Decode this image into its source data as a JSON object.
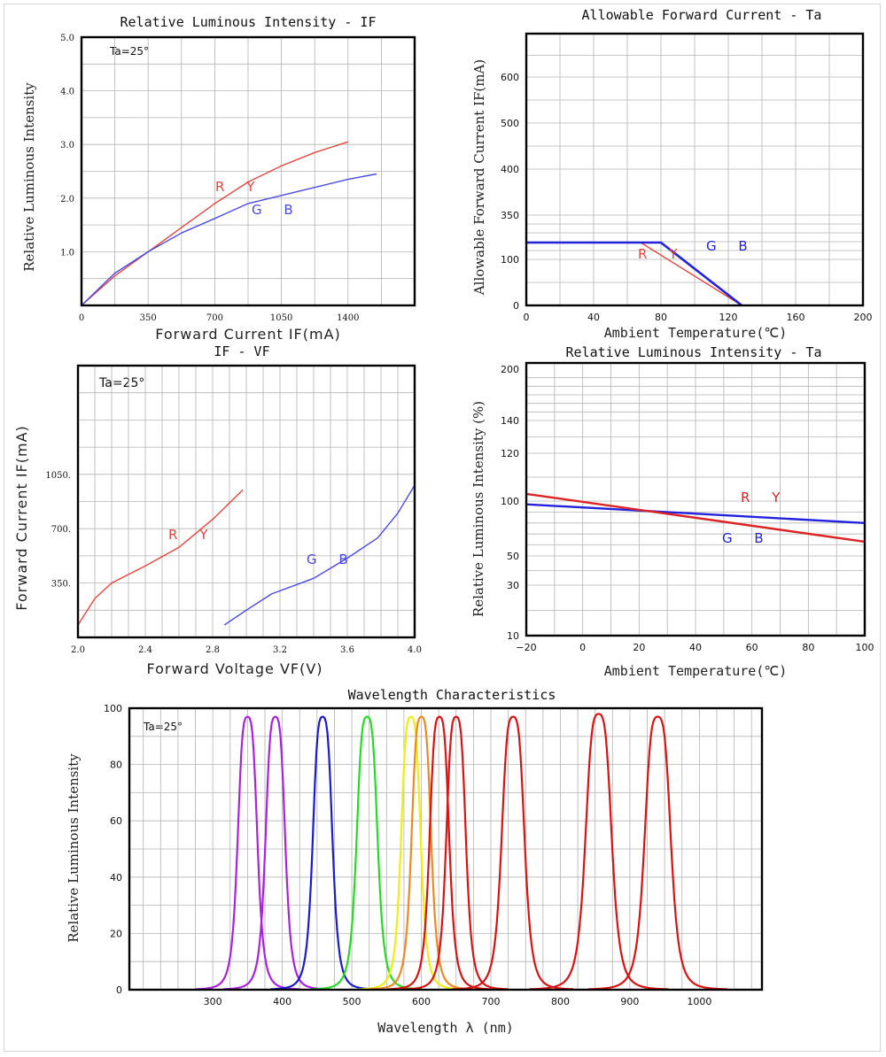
{
  "chart_data": [
    {
      "id": "lum-if",
      "type": "line",
      "title": "Relative Luminous Intensity - IF",
      "xlabel": "Forward Current IF(mA)",
      "ylabel": "Relative Luminous Intensity",
      "annotation": "Ta=25°",
      "xlim": [
        0,
        1750
      ],
      "ylim": [
        0,
        5.0
      ],
      "xticks": [
        0,
        350,
        700,
        1050,
        1400
      ],
      "xtick_labels": [
        "0",
        "350",
        "700",
        "1050",
        "1400"
      ],
      "yticks": [
        1.0,
        2.0,
        3.0,
        4.0,
        5.0
      ],
      "ytick_labels": [
        "1.0",
        "2.0",
        "3.0",
        "4.0",
        "5.0"
      ],
      "grid": true,
      "series": [
        {
          "name": "R Y",
          "color": "#e8453c",
          "x": [
            0,
            175,
            350,
            525,
            700,
            875,
            1050,
            1225,
            1400
          ],
          "y": [
            0,
            0.55,
            1.0,
            1.45,
            1.9,
            2.3,
            2.6,
            2.85,
            3.05
          ]
        },
        {
          "name": "G B",
          "color": "#4a4ae8",
          "x": [
            0,
            175,
            350,
            525,
            700,
            875,
            1050,
            1225,
            1400,
            1550
          ],
          "y": [
            0,
            0.6,
            1.0,
            1.35,
            1.62,
            1.9,
            2.05,
            2.2,
            2.35,
            2.45
          ]
        }
      ]
    },
    {
      "id": "if-ta",
      "type": "line",
      "title": "Allowable Forward Current - Ta",
      "xlabel": "Ambient Temperature(℃)",
      "ylabel": "Allowable Forward Current IF(mA)",
      "xlim": [
        0,
        200
      ],
      "ylim": [
        0,
        700
      ],
      "xticks": [
        0,
        40,
        80,
        120,
        160,
        200
      ],
      "xtick_labels": [
        "0",
        "40",
        "80",
        "120",
        "160",
        "200"
      ],
      "yticks": [
        0,
        100,
        350,
        400,
        500,
        600
      ],
      "ytick_labels": [
        "0",
        "100",
        "350",
        "400",
        "500",
        "600"
      ],
      "grid": true,
      "series": [
        {
          "name": "R Y",
          "color": "#e8453c",
          "x": [
            0,
            68,
            128
          ],
          "y": [
            195,
            195,
            0
          ]
        },
        {
          "name": "G B",
          "color": "#2222dd",
          "x": [
            0,
            80,
            128
          ],
          "y": [
            195,
            195,
            0
          ]
        }
      ]
    },
    {
      "id": "if-vf",
      "type": "line",
      "title": "IF - VF",
      "xlabel": "Forward Voltage VF(V)",
      "ylabel": "Forward Current IF(mA)",
      "annotation": "Ta=25°",
      "xlim": [
        2.0,
        4.0
      ],
      "ylim": [
        0,
        1750
      ],
      "xticks": [
        2.0,
        2.4,
        2.8,
        3.2,
        3.6,
        4.0
      ],
      "xtick_labels": [
        "2.0",
        "2.4",
        "2.8",
        "3.2",
        "3.6",
        "4.0"
      ],
      "yticks": [
        350,
        700,
        1050
      ],
      "ytick_labels": [
        "350.",
        "700.",
        "1050."
      ],
      "grid": true,
      "series": [
        {
          "name": "R Y",
          "color": "#e8453c",
          "x": [
            2.0,
            2.1,
            2.2,
            2.4,
            2.6,
            2.8,
            2.98
          ],
          "y": [
            80,
            250,
            350,
            460,
            580,
            760,
            950
          ]
        },
        {
          "name": "G B",
          "color": "#4a4ae8",
          "x": [
            2.87,
            3.0,
            3.15,
            3.4,
            3.6,
            3.78,
            3.9,
            4.0
          ],
          "y": [
            80,
            175,
            280,
            380,
            510,
            640,
            800,
            980
          ]
        }
      ]
    },
    {
      "id": "lum-ta",
      "type": "line",
      "title": "Relative Luminous Intensity - Ta",
      "xlabel": "Ambient Temperature(℃)",
      "ylabel": "Relative Luminous Intensity (%)",
      "xlim": [
        -20,
        100
      ],
      "ylim": [
        10,
        200
      ],
      "xticks": [
        -20,
        0,
        20,
        40,
        60,
        80,
        100
      ],
      "xtick_labels": [
        "−20",
        "0",
        "20",
        "40",
        "60",
        "80",
        "100"
      ],
      "yticks": [
        10,
        30,
        50,
        100,
        120,
        140,
        200
      ],
      "ytick_labels": [
        "10",
        "30",
        "50",
        "100",
        "120",
        "140",
        "200"
      ],
      "grid": true,
      "series": [
        {
          "name": "G B",
          "color": "#2222dd",
          "x": [
            -20,
            100
          ],
          "y": [
            97,
            80
          ]
        },
        {
          "name": "R Y",
          "color": "#dd2222",
          "x": [
            -20,
            100
          ],
          "y": [
            103,
            63
          ]
        }
      ]
    },
    {
      "id": "wavelength",
      "type": "line",
      "title": "Wavelength Characteristics",
      "xlabel": "Wavelength λ (nm)",
      "ylabel": "Relative Luminous Intensity",
      "annotation": "Ta=25°",
      "xlim": [
        180,
        1090
      ],
      "ylim": [
        0,
        100
      ],
      "xticks": [
        300,
        400,
        500,
        600,
        700,
        800,
        900,
        1000
      ],
      "xtick_labels": [
        "300",
        "400",
        "500",
        "600",
        "700",
        "800",
        "900",
        "1000"
      ],
      "yticks": [
        0,
        20,
        40,
        60,
        80,
        100
      ],
      "ytick_labels": [
        "0",
        "20",
        "40",
        "60",
        "80",
        "100"
      ],
      "grid": true,
      "series": [
        {
          "color": "#aa22dd",
          "peak_nm": 350,
          "peak": 97,
          "fwhm": 30
        },
        {
          "color": "#aa22dd",
          "peak_nm": 390,
          "peak": 97,
          "fwhm": 30
        },
        {
          "color": "#1a1ad6",
          "peak_nm": 458,
          "peak": 97,
          "fwhm": 30
        },
        {
          "color": "#22dd22",
          "peak_nm": 522,
          "peak": 97,
          "fwhm": 32
        },
        {
          "color": "#eeee11",
          "peak_nm": 585,
          "peak": 97,
          "fwhm": 30
        },
        {
          "color": "#ee8822",
          "peak_nm": 600,
          "peak": 97,
          "fwhm": 30
        },
        {
          "color": "#dd1111",
          "peak_nm": 626,
          "peak": 97,
          "fwhm": 30
        },
        {
          "color": "#dd1111",
          "peak_nm": 650,
          "peak": 97,
          "fwhm": 30
        },
        {
          "color": "#dd1111",
          "peak_nm": 732,
          "peak": 97,
          "fwhm": 35
        },
        {
          "color": "#dd1111",
          "peak_nm": 855,
          "peak": 98,
          "fwhm": 40
        },
        {
          "color": "#dd1111",
          "peak_nm": 940,
          "peak": 97,
          "fwhm": 40
        }
      ]
    }
  ]
}
